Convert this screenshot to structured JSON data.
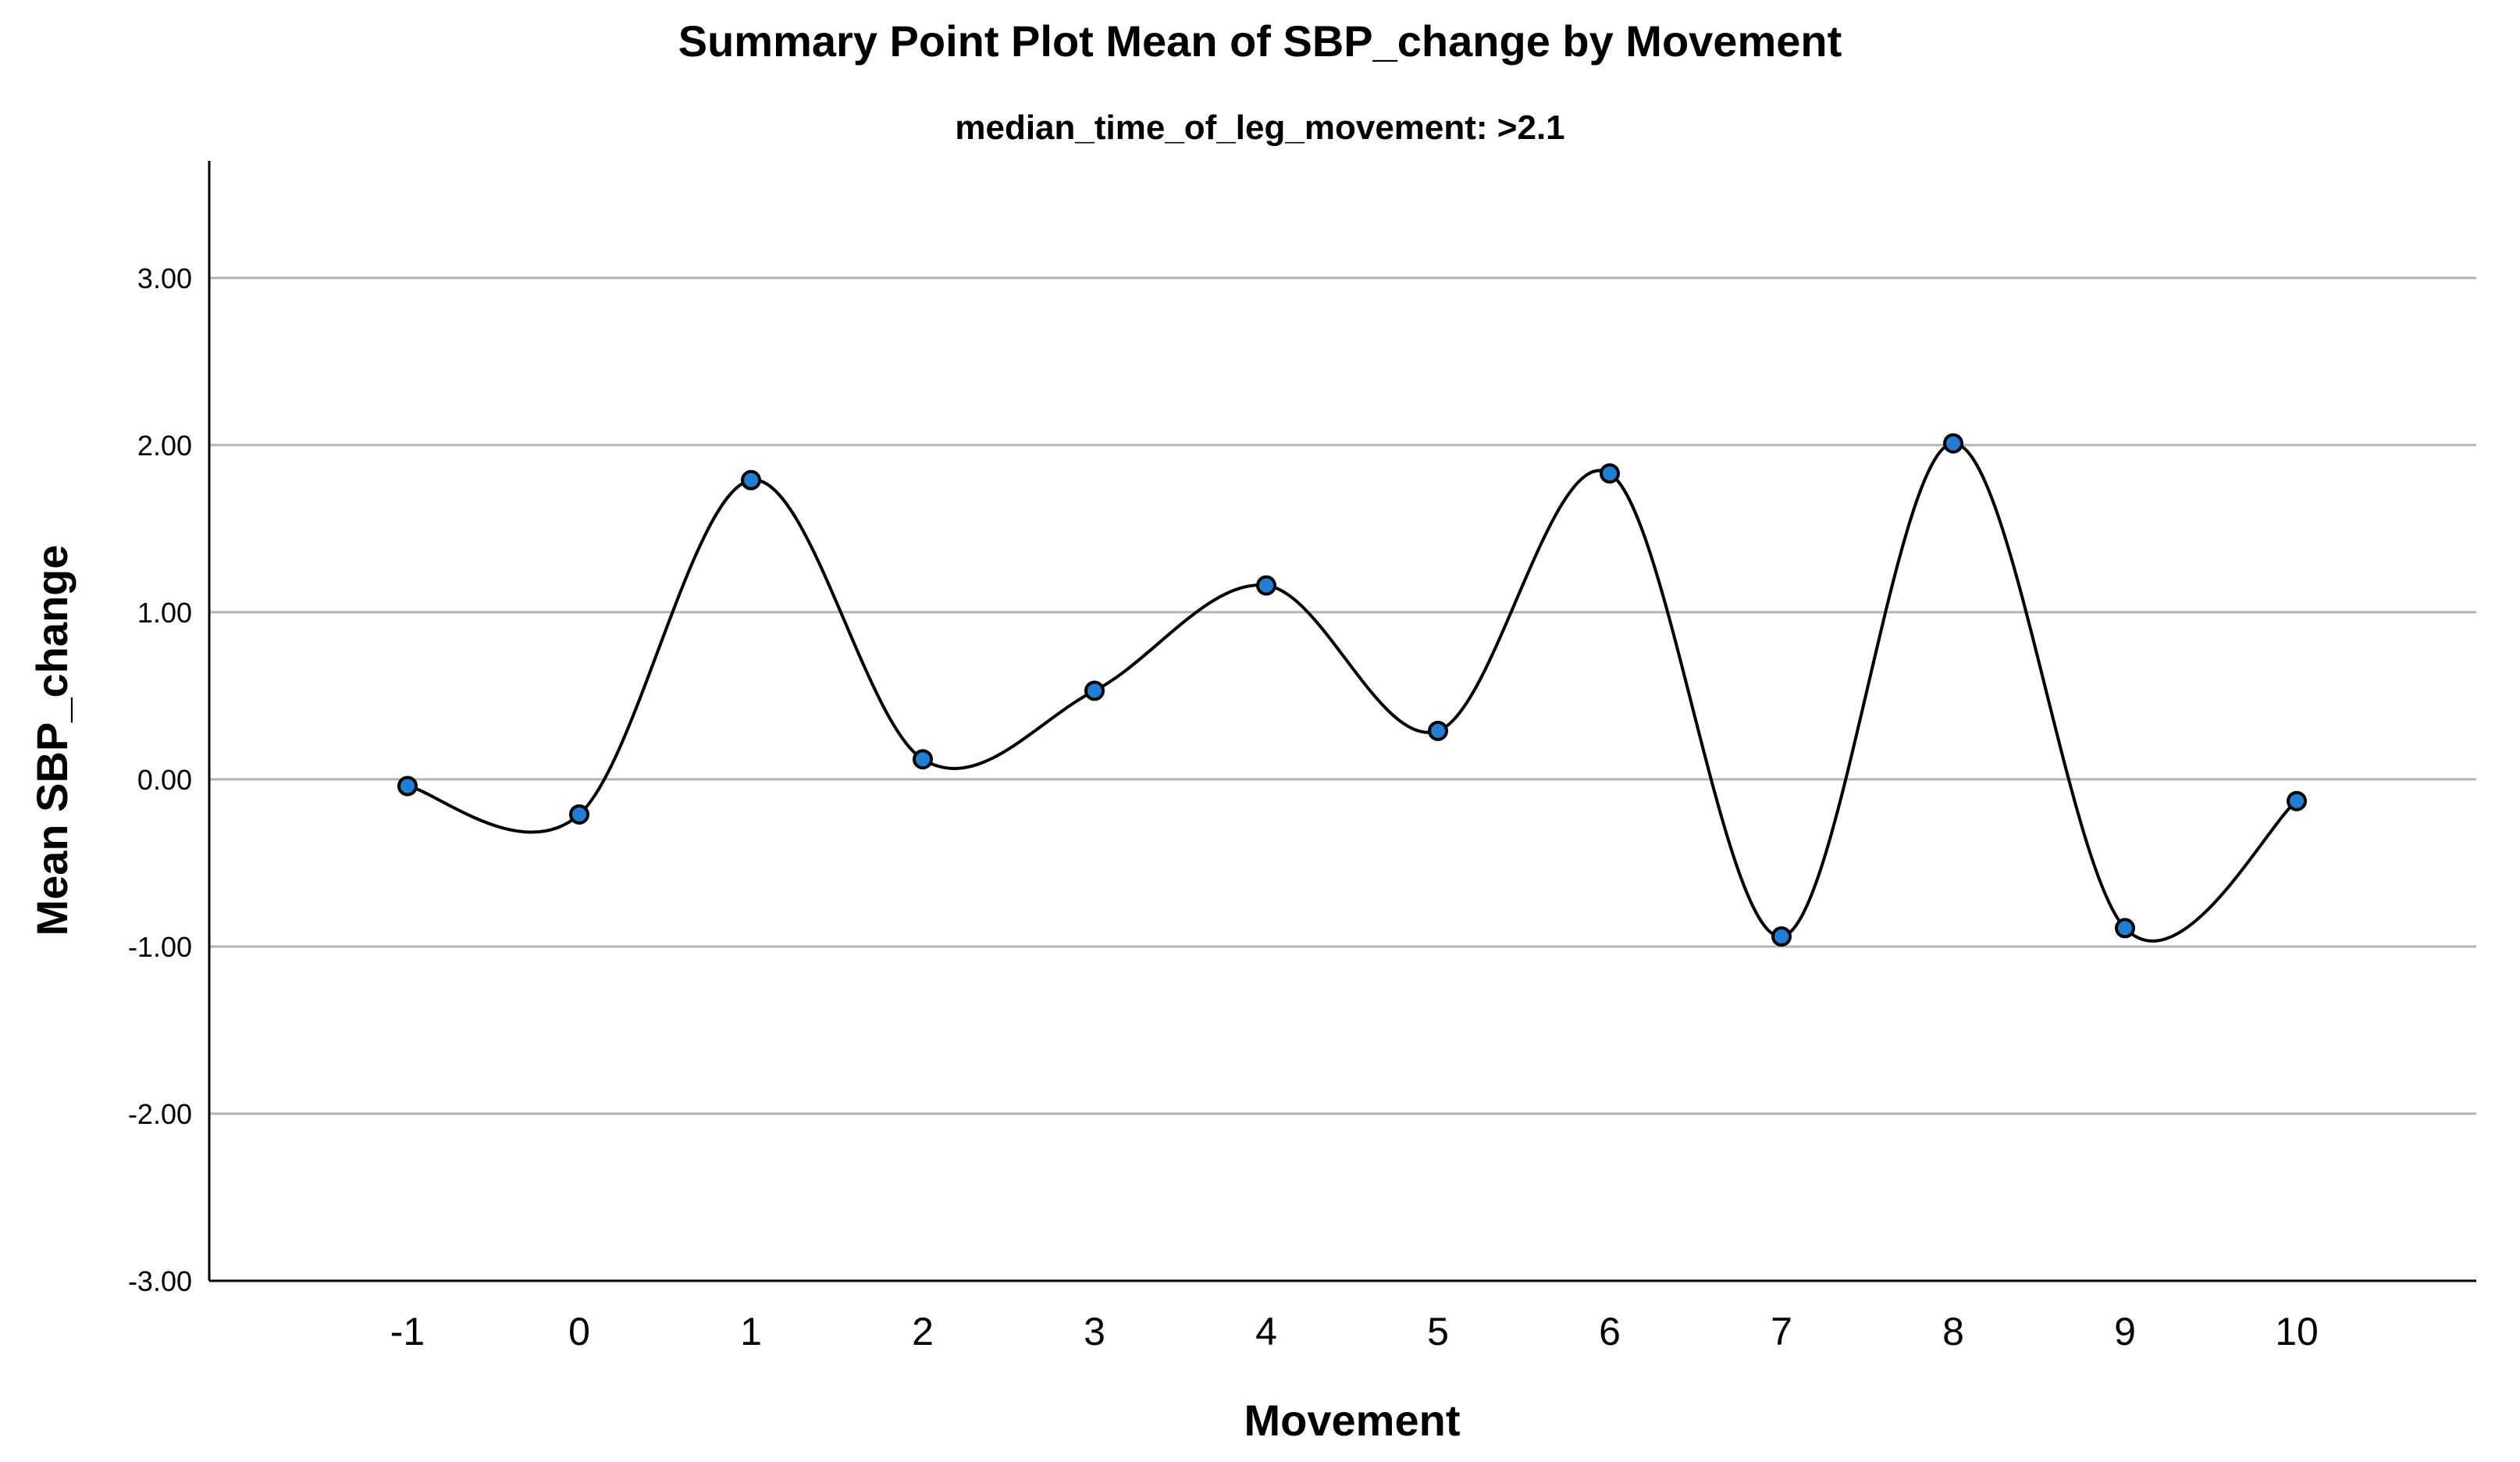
{
  "chart_data": {
    "type": "line",
    "title": "Summary Point Plot Mean of SBP_change by Movement",
    "subtitle": "median_time_of_leg_movement: >2.1",
    "xlabel": "Movement",
    "ylabel": "Mean SBP_change",
    "categories": [
      "-1",
      "0",
      "1",
      "2",
      "3",
      "4",
      "5",
      "6",
      "7",
      "8",
      "9",
      "10"
    ],
    "values": [
      -0.04,
      -0.21,
      1.79,
      0.12,
      0.53,
      1.16,
      0.29,
      1.83,
      -0.94,
      2.01,
      -0.89,
      -0.13
    ],
    "ylim": [
      -3.0,
      3.7
    ],
    "yticks": [
      "3.00",
      "2.00",
      "1.00",
      "0.00",
      "-1.00",
      "-2.00",
      "-3.00"
    ],
    "ytick_values": [
      3,
      2,
      1,
      0,
      -1,
      -2,
      -3
    ],
    "gridlines": "horizontal",
    "smooth_line": true,
    "colors": {
      "marker_fill": "#1f7fd4",
      "marker_edge": "#000000",
      "line": "#000000",
      "grid": "#b3b3b3"
    }
  }
}
